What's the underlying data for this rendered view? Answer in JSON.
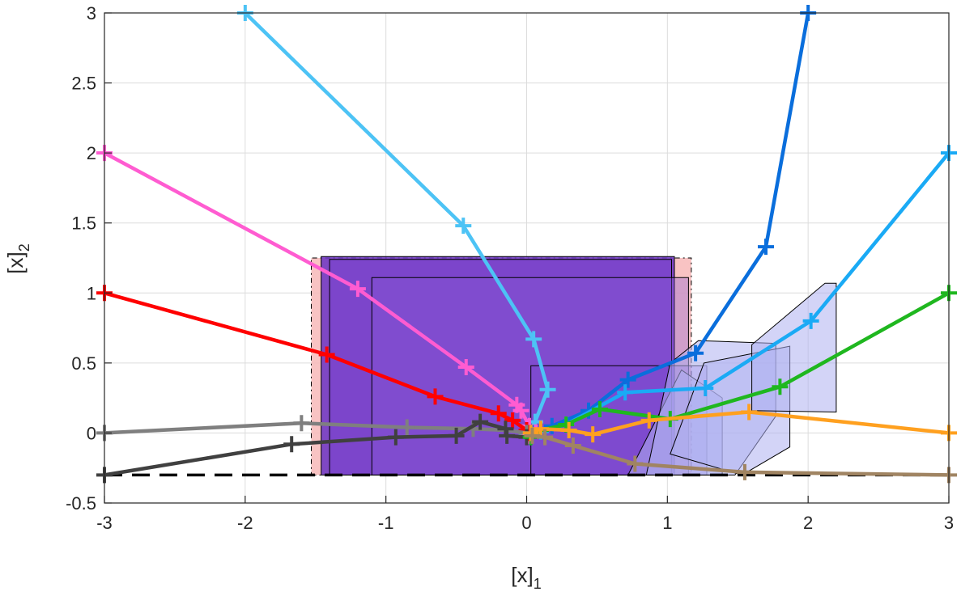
{
  "chart_data": {
    "type": "line",
    "title": "",
    "xlabel": "[x]",
    "xlabel_sub": "1",
    "ylabel": "[x]",
    "ylabel_sub": "2",
    "xlim": [
      -3,
      3
    ],
    "ylim": [
      -0.5,
      3
    ],
    "xticks": [
      -3,
      -2,
      -1,
      0,
      1,
      2,
      3
    ],
    "xtick_labels": [
      "-3",
      "-2",
      "-1",
      "0",
      "1",
      "2",
      "3"
    ],
    "yticks": [
      -0.5,
      0,
      0.5,
      1,
      1.5,
      2,
      2.5,
      3
    ],
    "ytick_labels": [
      "-0.5",
      "0",
      "0.5",
      "1",
      "1.5",
      "2",
      "2.5",
      "3"
    ],
    "grid": true,
    "constraint_line": {
      "y": -0.3,
      "color": "#000000",
      "style": "dashed"
    },
    "regions": [
      {
        "color": "#f7b8b8",
        "opacity": 0.85,
        "stroke": "#000000",
        "dash": "6,4,2,4",
        "points": [
          [
            -1.53,
            -0.3
          ],
          [
            1.17,
            -0.3
          ],
          [
            1.17,
            1.25
          ],
          [
            -1.53,
            1.25
          ]
        ]
      },
      {
        "color": "#6a32c4",
        "opacity": 0.85,
        "stroke": "#000000",
        "dash": "",
        "points": [
          [
            -1.46,
            -0.3
          ],
          [
            1.05,
            -0.3
          ],
          [
            1.05,
            1.26
          ],
          [
            -1.46,
            1.26
          ]
        ]
      },
      {
        "color": "#7a45d0",
        "opacity": 0.6,
        "stroke": "#000000",
        "dash": "",
        "points": [
          [
            -1.4,
            -0.3
          ],
          [
            1.03,
            -0.3
          ],
          [
            1.03,
            1.24
          ],
          [
            -1.4,
            1.24
          ]
        ]
      },
      {
        "color": "#8a5ad8",
        "opacity": 0.35,
        "stroke": "#000000",
        "dash": "",
        "points": [
          [
            -1.1,
            -0.3
          ],
          [
            1.15,
            -0.3
          ],
          [
            1.15,
            1.11
          ],
          [
            -1.1,
            1.11
          ]
        ]
      },
      {
        "color": "#7a45d0",
        "opacity": 0.3,
        "stroke": "#000000",
        "dash": "",
        "points": [
          [
            0.03,
            -0.3
          ],
          [
            1.28,
            -0.3
          ],
          [
            1.28,
            0.48
          ],
          [
            0.03,
            0.48
          ]
        ]
      },
      {
        "color": "#aeb0f0",
        "opacity": 0.55,
        "stroke": "#000000",
        "dash": "",
        "points": [
          [
            0.72,
            -0.3
          ],
          [
            1.39,
            -0.3
          ],
          [
            1.39,
            0.25
          ],
          [
            1.1,
            0.45
          ]
        ]
      },
      {
        "color": "#aeb0f0",
        "opacity": 0.55,
        "stroke": "#000000",
        "dash": "",
        "points": [
          [
            0.85,
            -0.3
          ],
          [
            1.48,
            -0.3
          ],
          [
            1.77,
            0.12
          ],
          [
            1.77,
            0.64
          ],
          [
            1.22,
            0.66
          ],
          [
            1.02,
            0.5
          ]
        ]
      },
      {
        "color": "#aeb0f0",
        "opacity": 0.55,
        "stroke": "#000000",
        "dash": "",
        "points": [
          [
            1.02,
            -0.15
          ],
          [
            1.53,
            -0.3
          ],
          [
            1.87,
            -0.1
          ],
          [
            1.87,
            0.62
          ],
          [
            1.26,
            0.5
          ]
        ]
      },
      {
        "color": "#aeb0f0",
        "opacity": 0.55,
        "stroke": "#000000",
        "dash": "",
        "points": [
          [
            1.6,
            0.16
          ],
          [
            2.2,
            0.15
          ],
          [
            2.2,
            1.07
          ],
          [
            2.12,
            1.07
          ],
          [
            1.6,
            0.63
          ]
        ]
      }
    ],
    "series": [
      {
        "color": "#4dc3f5",
        "points": [
          [
            -2,
            3
          ],
          [
            -0.45,
            1.48
          ],
          [
            0.05,
            0.67
          ],
          [
            0.15,
            0.31
          ],
          [
            0.06,
            0.08
          ],
          [
            0.02,
            0.0
          ],
          [
            0.0,
            -0.02
          ]
        ]
      },
      {
        "color": "#ff5cd1",
        "points": [
          [
            -3,
            2
          ],
          [
            -1.2,
            1.03
          ],
          [
            -0.43,
            0.47
          ],
          [
            -0.07,
            0.2
          ],
          [
            -0.04,
            0.16
          ],
          [
            0.02,
            0.05
          ],
          [
            0.02,
            -0.02
          ]
        ]
      },
      {
        "color": "#ff0000",
        "points": [
          [
            -3,
            1
          ],
          [
            -1.42,
            0.56
          ],
          [
            -0.65,
            0.26
          ],
          [
            -0.2,
            0.14
          ],
          [
            -0.1,
            0.09
          ],
          [
            0.0,
            0.02
          ],
          [
            0.02,
            0.0
          ]
        ]
      },
      {
        "color": "#7f7f7f",
        "points": [
          [
            -3,
            0
          ],
          [
            -1.6,
            0.07
          ],
          [
            -0.85,
            0.04
          ],
          [
            -0.38,
            0.03
          ],
          [
            -0.15,
            0.02
          ],
          [
            0.0,
            0.0
          ]
        ]
      },
      {
        "color": "#404040",
        "points": [
          [
            -3,
            -0.3
          ],
          [
            -1.67,
            -0.08
          ],
          [
            -0.93,
            -0.03
          ],
          [
            -0.5,
            -0.02
          ],
          [
            -0.33,
            0.08
          ],
          [
            -0.15,
            0.03
          ],
          [
            -0.14,
            -0.02
          ],
          [
            0.0,
            -0.03
          ]
        ]
      },
      {
        "color": "#0a6edc",
        "points": [
          [
            2,
            3
          ],
          [
            1.7,
            1.33
          ],
          [
            1.2,
            0.57
          ],
          [
            0.72,
            0.38
          ],
          [
            0.44,
            0.16
          ],
          [
            0.18,
            0.05
          ],
          [
            0.04,
            0.0
          ]
        ]
      },
      {
        "color": "#1aaaf5",
        "points": [
          [
            3,
            2
          ],
          [
            2.02,
            0.8
          ],
          [
            1.27,
            0.32
          ],
          [
            0.7,
            0.29
          ],
          [
            0.28,
            0.06
          ],
          [
            0.1,
            0.01
          ],
          [
            0.03,
            0.0
          ]
        ]
      },
      {
        "color": "#1fb71f",
        "points": [
          [
            3,
            1
          ],
          [
            1.8,
            0.33
          ],
          [
            1.02,
            0.1
          ],
          [
            0.52,
            0.17
          ],
          [
            0.28,
            0.06
          ],
          [
            0.1,
            0.02
          ],
          [
            0.03,
            -0.03
          ]
        ]
      },
      {
        "color": "#ffa01f",
        "points": [
          [
            3,
            0
          ],
          [
            1.58,
            0.15
          ],
          [
            0.87,
            0.09
          ],
          [
            0.47,
            -0.01
          ],
          [
            0.3,
            0.02
          ],
          [
            0.1,
            0.03
          ],
          [
            0.03,
            0.0
          ]
        ]
      },
      {
        "color": "#a08462",
        "points": [
          [
            3,
            -0.3
          ],
          [
            1.55,
            -0.28
          ],
          [
            0.77,
            -0.22
          ],
          [
            0.33,
            -0.09
          ],
          [
            0.13,
            -0.03
          ],
          [
            0.04,
            -0.02
          ]
        ]
      }
    ]
  }
}
